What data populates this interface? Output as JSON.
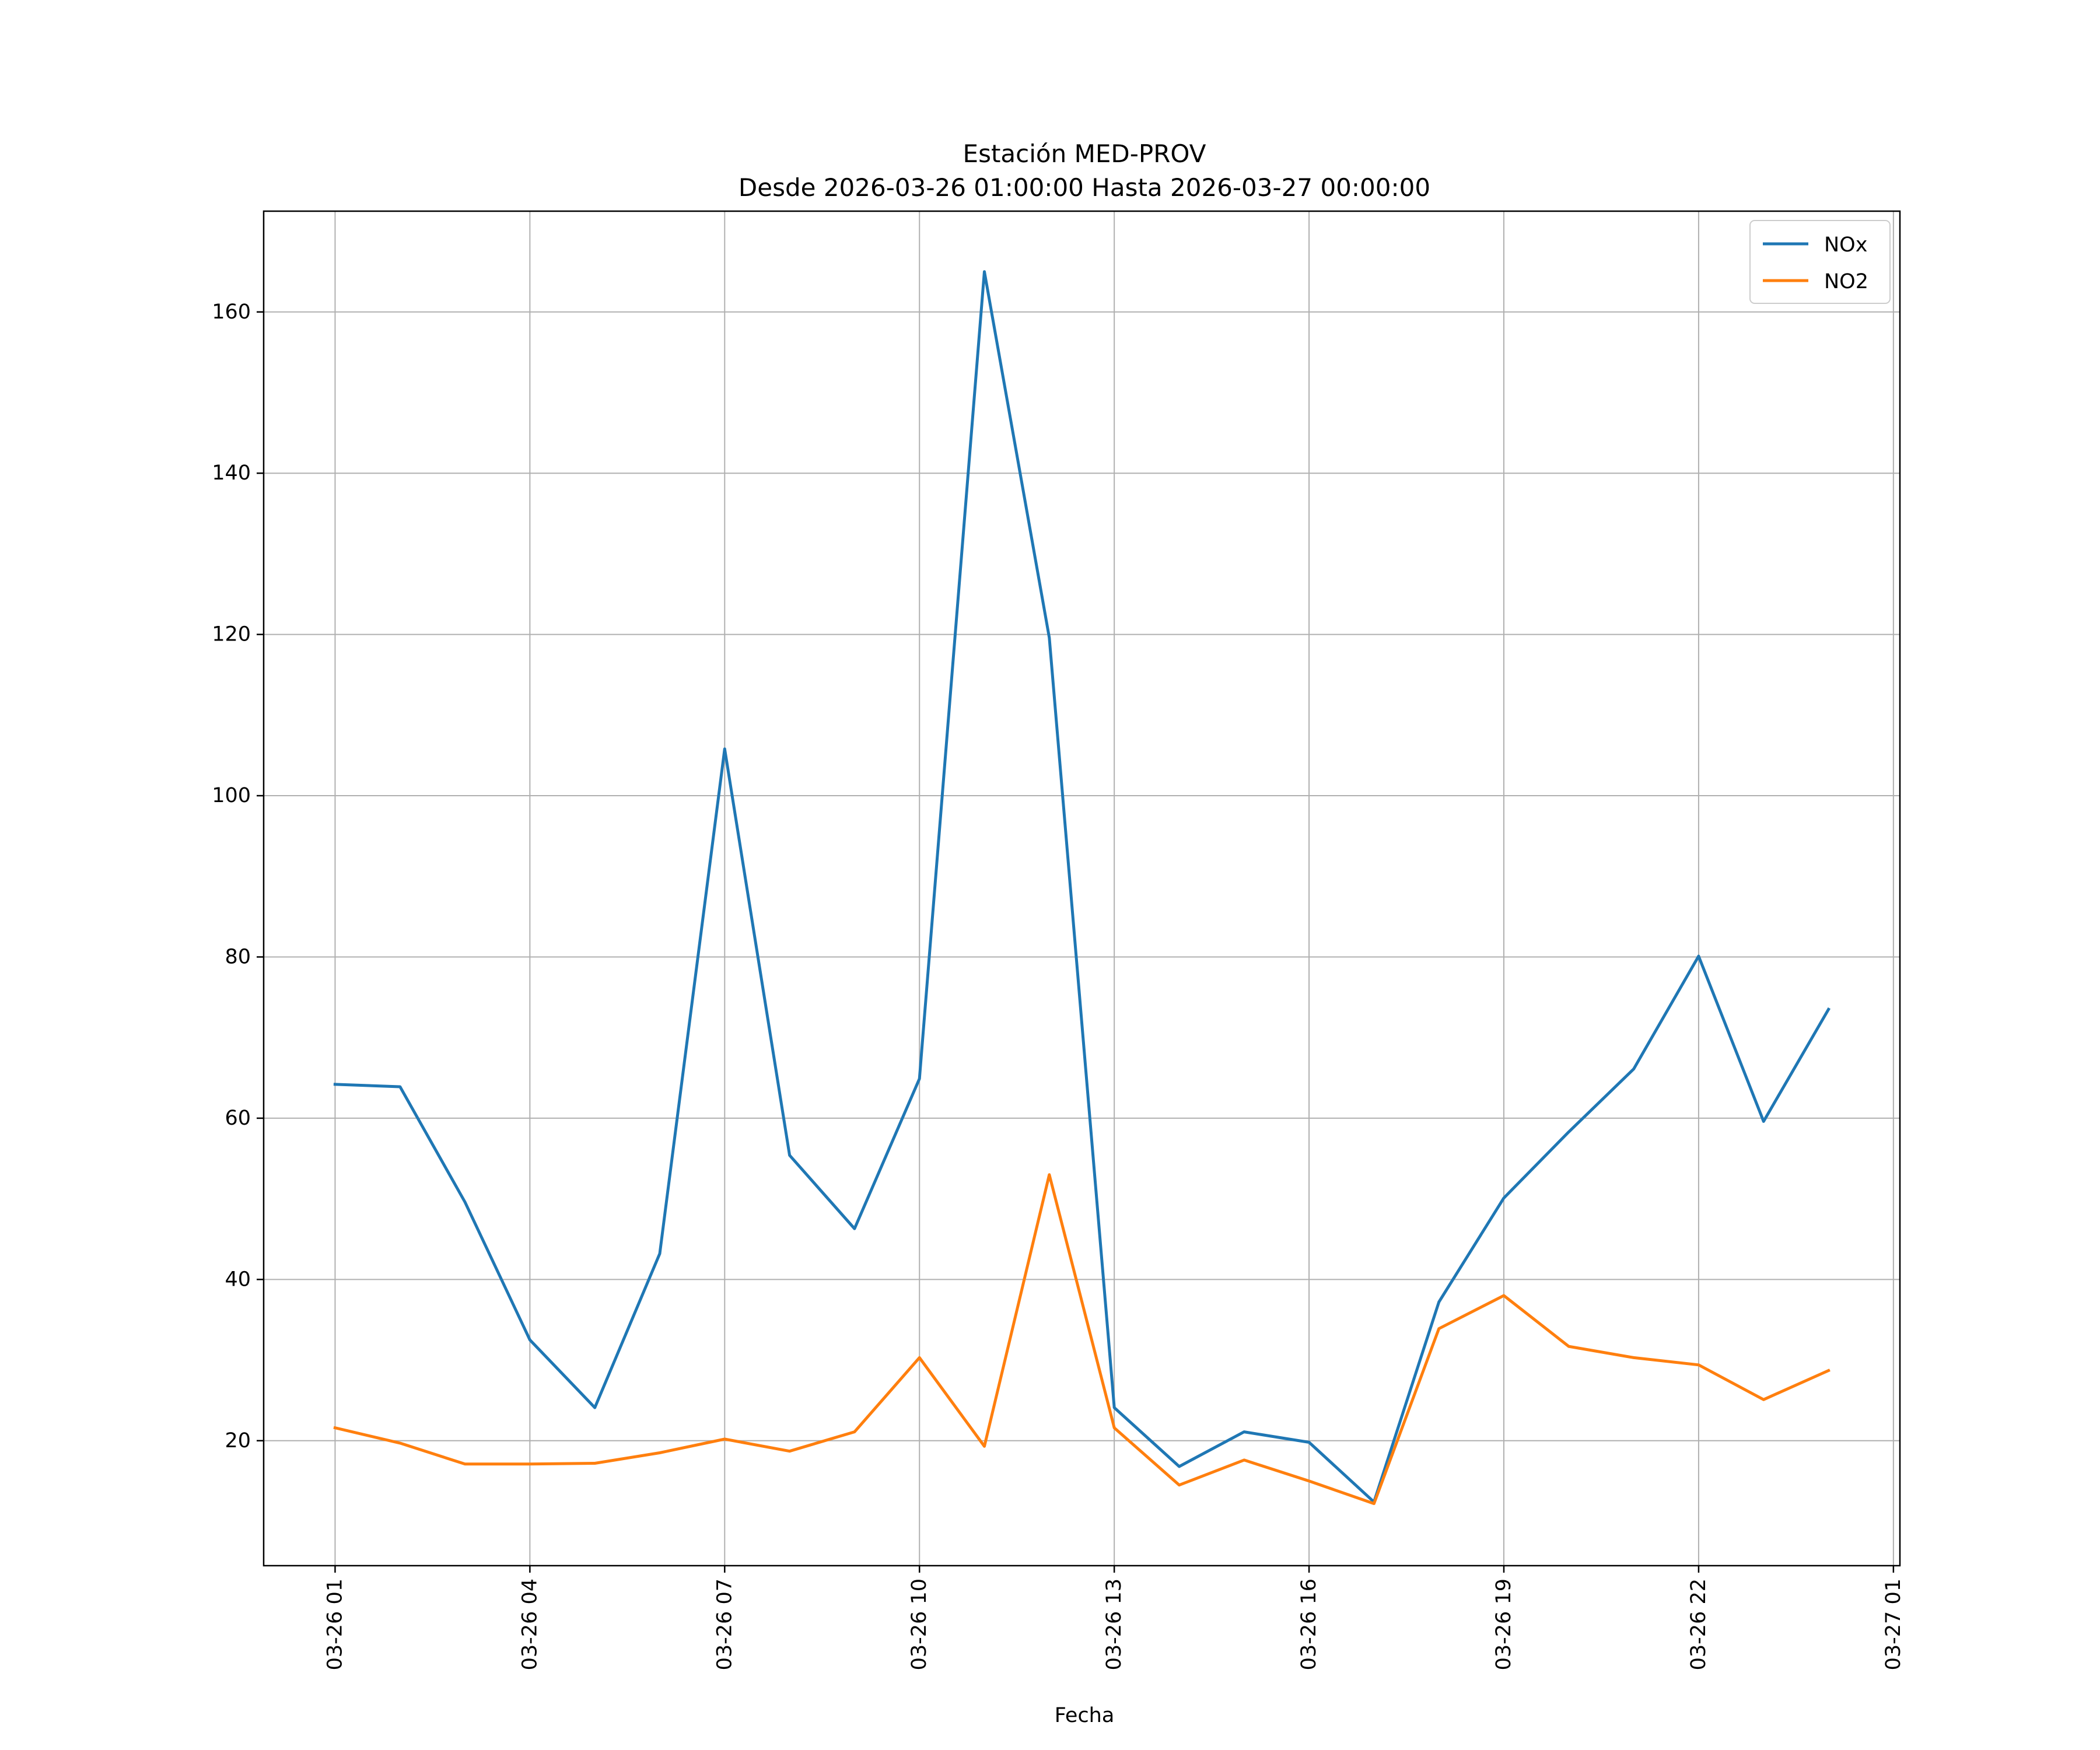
{
  "chart_data": {
    "type": "line",
    "title_line1": "Estación MED-PROV",
    "title_line2": "Desde 2026-03-26 01:00:00 Hasta 2026-03-27 00:00:00",
    "xlabel": "Fecha",
    "ylabel": "",
    "grid": true,
    "legend_position": "top-right",
    "x_hours": [
      1,
      2,
      3,
      4,
      5,
      6,
      7,
      8,
      9,
      10,
      11,
      12,
      13,
      14,
      15,
      16,
      17,
      18,
      19,
      20,
      21,
      22,
      23,
      24
    ],
    "xlim": [
      -0.1,
      25.1
    ],
    "ylim": [
      4.5,
      172.5
    ],
    "x_ticks": [
      {
        "hour": 1,
        "label": "03-26 01"
      },
      {
        "hour": 4,
        "label": "03-26 04"
      },
      {
        "hour": 7,
        "label": "03-26 07"
      },
      {
        "hour": 10,
        "label": "03-26 10"
      },
      {
        "hour": 13,
        "label": "03-26 13"
      },
      {
        "hour": 16,
        "label": "03-26 16"
      },
      {
        "hour": 19,
        "label": "03-26 19"
      },
      {
        "hour": 22,
        "label": "03-26 22"
      },
      {
        "hour": 25,
        "label": "03-27 01"
      }
    ],
    "y_ticks": [
      20,
      40,
      60,
      80,
      100,
      120,
      140,
      160
    ],
    "series": [
      {
        "name": "NOx",
        "color": "#1f77b4",
        "values": [
          64.2,
          63.9,
          49.6,
          32.5,
          24.1,
          43.2,
          105.8,
          55.4,
          46.3,
          64.9,
          165.0,
          119.6,
          24.1,
          16.8,
          21.1,
          19.8,
          12.4,
          37.2,
          50.1,
          58.3,
          66.1,
          80.1,
          59.6,
          73.5
        ]
      },
      {
        "name": "NO2",
        "color": "#ff7f0e",
        "values": [
          21.6,
          19.7,
          17.1,
          17.1,
          17.2,
          18.5,
          20.2,
          18.7,
          21.1,
          30.3,
          19.3,
          53.0,
          21.6,
          14.5,
          17.6,
          15.0,
          12.2,
          33.9,
          38.0,
          31.7,
          30.3,
          29.4,
          25.1,
          28.7
        ]
      }
    ]
  }
}
